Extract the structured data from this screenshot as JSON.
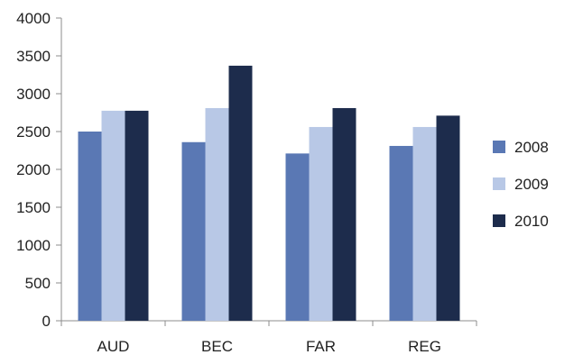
{
  "chart_data": {
    "type": "bar",
    "title": "",
    "xlabel": "",
    "ylabel": "",
    "categories": [
      "AUD",
      "BEC",
      "FAR",
      "REG"
    ],
    "series": [
      {
        "name": "2008",
        "color": "#5a78b4",
        "values": [
          2500,
          2360,
          2210,
          2310
        ]
      },
      {
        "name": "2009",
        "color": "#b8c8e6",
        "values": [
          2775,
          2810,
          2560,
          2560
        ]
      },
      {
        "name": "2010",
        "color": "#1d2c4c",
        "values": [
          2775,
          3370,
          2810,
          2710
        ]
      }
    ],
    "ylim": [
      0,
      4000
    ],
    "yticks": [
      0,
      500,
      1000,
      1500,
      2000,
      2500,
      3000,
      3500,
      4000
    ],
    "grid": false,
    "legend_position": "right"
  }
}
